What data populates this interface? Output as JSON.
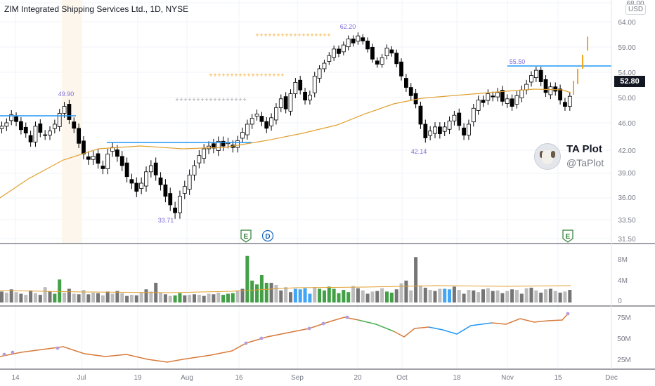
{
  "header": {
    "symbol_title": "ZIM Integrated Shipping Services Ltd., 1D, NYSE",
    "currency": "USD"
  },
  "price_axis": {
    "ticks": [
      "68.00",
      "64.00",
      "59.00",
      "54.00",
      "50.00",
      "46.00",
      "42.00",
      "39.00",
      "36.00",
      "33.50",
      "31.50"
    ],
    "last_price": "52.80",
    "last_price_color": "#131722"
  },
  "time_axis": {
    "labels": [
      "14",
      "Jul",
      "19",
      "Aug",
      "16",
      "Sep",
      "20",
      "Oct",
      "18",
      "Nov",
      "15",
      "Dec"
    ]
  },
  "volume_axis": {
    "ticks": [
      "8M",
      "4M",
      "0"
    ]
  },
  "indicator_axis": {
    "ticks": [
      "75M",
      "50M",
      "25M"
    ]
  },
  "price_labels": {
    "high1": "49.90",
    "low1": "33.71",
    "high2": "62.20",
    "low2": "42.14",
    "high3": "55.50"
  },
  "events": {
    "earnings1": "E",
    "dividend": "D",
    "earnings2": "E"
  },
  "watermark": {
    "name": "TA Plot",
    "handle": "@TaPlot"
  },
  "colors": {
    "bull": "#ffffff",
    "bear": "#000000",
    "ma": "#e0a030",
    "resistance": "#2196f3",
    "vol_green": "#43a047",
    "vol_blue": "#42a5f5",
    "vol_gray": "#757575",
    "vol_light": "#bdbdbd",
    "obv_orange": "#d87a3a",
    "obv_green": "#4caf50",
    "obv_blue": "#2196f3",
    "event_green": "#2e7d32",
    "event_blue": "#1565c0",
    "plus_orange": "#f5a623",
    "plus_gray": "#9e9e9e",
    "future_orange": "#f5a623"
  }
}
